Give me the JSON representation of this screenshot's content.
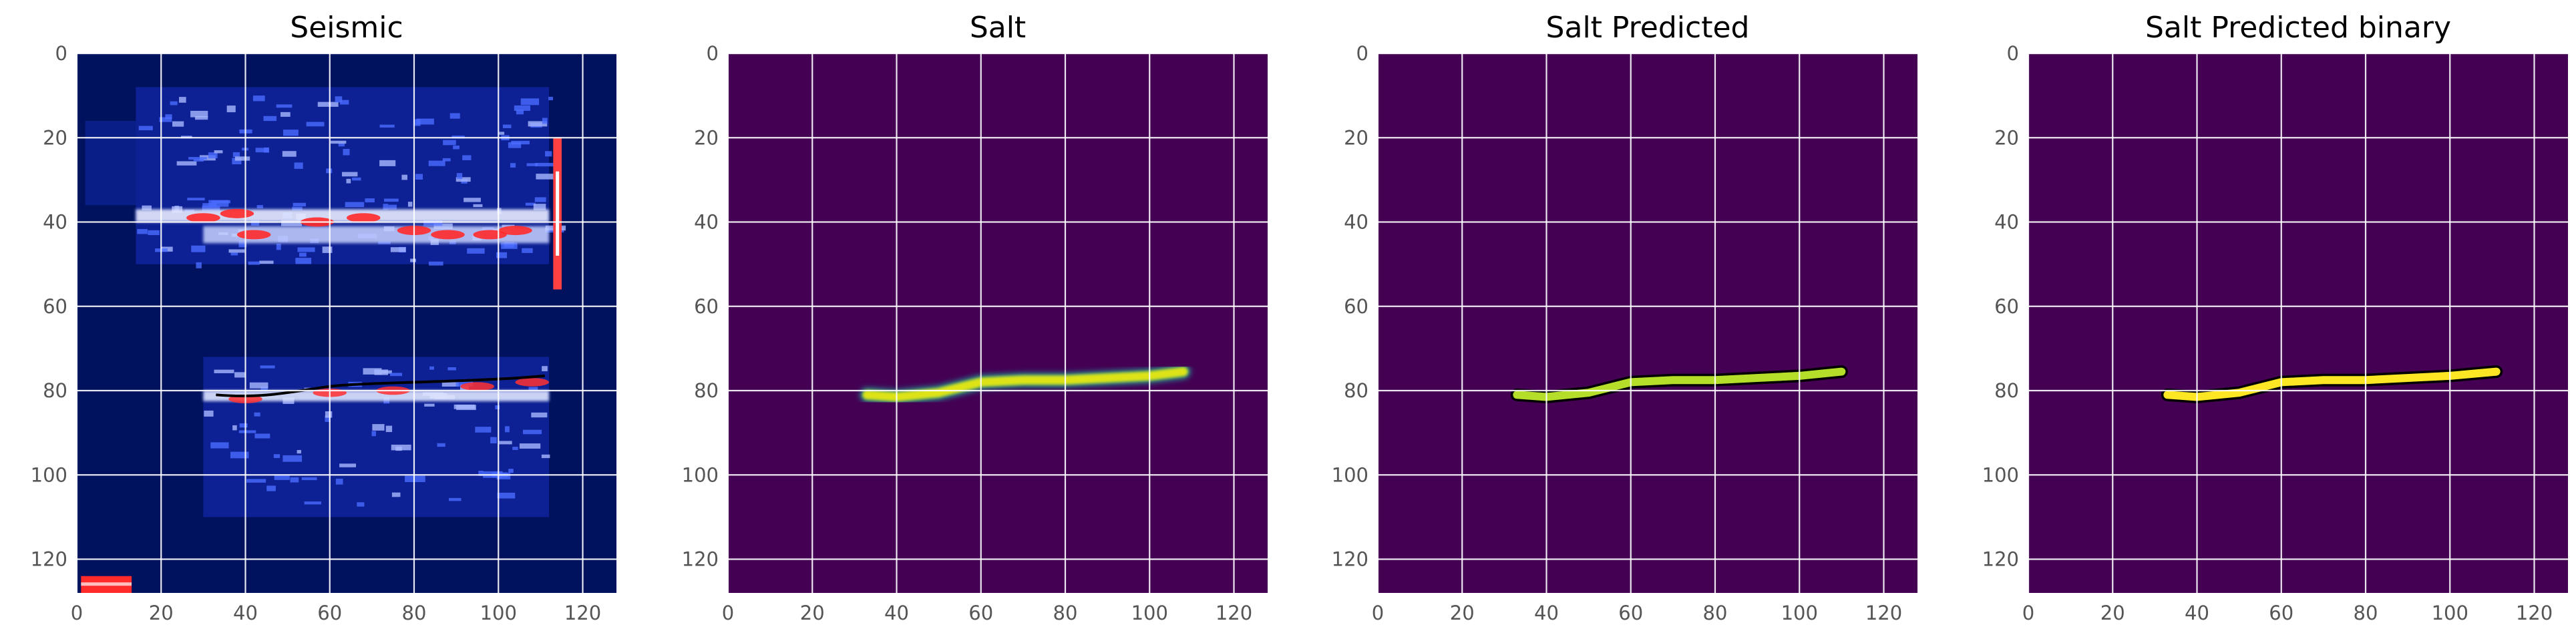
{
  "chart_data": [
    {
      "type": "heatmap",
      "title": "Seismic",
      "xlabel": "",
      "ylabel": "",
      "xlim": [
        0,
        128
      ],
      "ylim": [
        128,
        0
      ],
      "xticks": [
        0,
        20,
        40,
        60,
        80,
        100,
        120
      ],
      "yticks": [
        0,
        20,
        40,
        60,
        80,
        100,
        120
      ],
      "grid": true,
      "colormap": "seismic",
      "colors": {
        "background": "#00115e",
        "mid": "#1f3cff",
        "high": "#ffffff",
        "peak": "#ff2020"
      },
      "features": [
        {
          "description_value": "bright reflector band",
          "x_range": [
            14,
            112
          ],
          "y_range": [
            36,
            46
          ]
        },
        {
          "description_value": "bright reflector band",
          "x_range": [
            30,
            112
          ],
          "y_range": [
            76,
            86
          ]
        },
        {
          "description_value": "upper noisy band",
          "x_range": [
            14,
            112
          ],
          "y_range": [
            10,
            30
          ]
        }
      ]
    },
    {
      "type": "heatmap",
      "title": "Salt",
      "xlabel": "",
      "ylabel": "",
      "xlim": [
        0,
        128
      ],
      "ylim": [
        128,
        0
      ],
      "xticks": [
        0,
        20,
        40,
        60,
        80,
        100,
        120
      ],
      "yticks": [
        0,
        20,
        40,
        60,
        80,
        100,
        120
      ],
      "grid": true,
      "colormap": "viridis",
      "colors": {
        "background": "#440154",
        "mask": "#dde318",
        "edge": "#21908d"
      },
      "mask_path": [
        [
          33,
          81
        ],
        [
          40,
          81.5
        ],
        [
          50,
          80.5
        ],
        [
          60,
          78
        ],
        [
          70,
          77.5
        ],
        [
          80,
          77.5
        ],
        [
          90,
          77
        ],
        [
          100,
          76.5
        ],
        [
          108,
          75.5
        ]
      ]
    },
    {
      "type": "heatmap",
      "title": "Salt Predicted",
      "xlabel": "",
      "ylabel": "",
      "xlim": [
        0,
        128
      ],
      "ylim": [
        128,
        0
      ],
      "xticks": [
        0,
        20,
        40,
        60,
        80,
        100,
        120
      ],
      "yticks": [
        0,
        20,
        40,
        60,
        80,
        100,
        120
      ],
      "grid": true,
      "colormap": "viridis",
      "colors": {
        "background": "#440154",
        "mask": "#b5de2b",
        "contour": "#000000"
      },
      "mask_path": [
        [
          33,
          81
        ],
        [
          40,
          81.5
        ],
        [
          50,
          80.5
        ],
        [
          60,
          78
        ],
        [
          70,
          77.5
        ],
        [
          80,
          77.5
        ],
        [
          90,
          77
        ],
        [
          100,
          76.5
        ],
        [
          110,
          75.5
        ]
      ]
    },
    {
      "type": "heatmap",
      "title": "Salt Predicted binary",
      "xlabel": "",
      "ylabel": "",
      "xlim": [
        0,
        128
      ],
      "ylim": [
        128,
        0
      ],
      "xticks": [
        0,
        20,
        40,
        60,
        80,
        100,
        120
      ],
      "yticks": [
        0,
        20,
        40,
        60,
        80,
        100,
        120
      ],
      "grid": true,
      "colormap": "viridis",
      "colors": {
        "background": "#440154",
        "mask": "#fde725",
        "contour": "#000000"
      },
      "mask_path": [
        [
          33,
          81
        ],
        [
          40,
          81.5
        ],
        [
          50,
          80.5
        ],
        [
          60,
          78
        ],
        [
          70,
          77.5
        ],
        [
          80,
          77.5
        ],
        [
          90,
          77
        ],
        [
          100,
          76.5
        ],
        [
          111,
          75.5
        ]
      ]
    }
  ]
}
